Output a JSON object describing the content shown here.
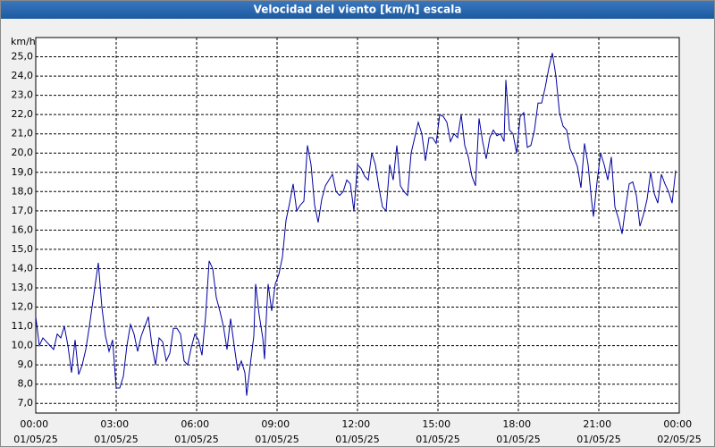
{
  "chart_data": {
    "type": "line",
    "title": "Velocidad del viento [km/h] escala",
    "y_label": "km/h",
    "x": [
      0,
      8,
      16,
      24,
      32,
      40,
      48,
      56,
      64,
      72,
      80,
      88,
      96,
      104,
      112,
      120,
      132,
      140,
      148,
      156,
      164,
      172,
      180,
      188,
      196,
      204,
      212,
      220,
      228,
      236,
      244,
      252,
      260,
      268,
      276,
      284,
      292,
      300,
      308,
      316,
      324,
      332,
      340,
      348,
      356,
      364,
      372,
      380,
      388,
      396,
      404,
      412,
      420,
      428,
      436,
      444,
      452,
      460,
      468,
      472,
      480,
      488,
      492,
      500,
      508,
      512,
      516,
      520,
      528,
      536,
      544,
      552,
      560,
      568,
      576,
      584,
      592,
      600,
      608,
      616,
      624,
      632,
      640,
      648,
      656,
      664,
      672,
      680,
      688,
      696,
      704,
      712,
      720,
      728,
      736,
      744,
      752,
      760,
      768,
      776,
      784,
      792,
      800,
      808,
      816,
      824,
      832,
      840,
      848,
      856,
      864,
      872,
      880,
      888,
      896,
      904,
      912,
      920,
      928,
      936,
      944,
      952,
      960,
      968,
      976,
      984,
      992,
      1000,
      1008,
      1016,
      1024,
      1032,
      1040,
      1048,
      1052,
      1060,
      1068,
      1076,
      1084,
      1092,
      1100,
      1108,
      1116,
      1124,
      1132,
      1140,
      1148,
      1156,
      1164,
      1172,
      1180,
      1188,
      1196,
      1204,
      1212,
      1220,
      1228,
      1236,
      1244,
      1248,
      1256,
      1264,
      1272,
      1280,
      1288,
      1296,
      1304,
      1312,
      1320,
      1328,
      1336,
      1344,
      1352,
      1360,
      1368,
      1376,
      1384,
      1392,
      1400,
      1408,
      1416,
      1424,
      1432
    ],
    "series": [
      {
        "name": "Velocidad del viento",
        "color": "#0000a0",
        "values": [
          11.5,
          10.0,
          10.4,
          10.2,
          10.0,
          9.8,
          10.6,
          10.4,
          11.0,
          10.0,
          8.6,
          10.3,
          8.5,
          9.0,
          9.8,
          11.0,
          13.0,
          14.3,
          12.0,
          10.5,
          9.7,
          10.3,
          7.8,
          7.8,
          8.4,
          10.0,
          11.1,
          10.6,
          9.7,
          10.5,
          11.0,
          11.5,
          10.0,
          9.0,
          10.4,
          10.2,
          9.2,
          9.6,
          10.9,
          10.9,
          10.6,
          9.2,
          9.0,
          9.9,
          10.6,
          10.3,
          9.5,
          11.5,
          14.4,
          14.0,
          12.5,
          11.8,
          11.0,
          9.8,
          11.4,
          10.0,
          8.7,
          9.2,
          8.6,
          7.4,
          9.0,
          10.5,
          13.2,
          11.6,
          10.4,
          9.3,
          11.5,
          13.2,
          11.8,
          13.2,
          13.7,
          14.6,
          16.5,
          17.4,
          18.4,
          17.0,
          17.3,
          17.5,
          20.4,
          19.4,
          17.3,
          16.4,
          17.6,
          18.3,
          18.6,
          18.9,
          18.0,
          17.8,
          18.0,
          18.6,
          18.4,
          17.0,
          19.4,
          19.2,
          18.8,
          18.6,
          20.0,
          19.4,
          18.2,
          17.2,
          17.0,
          19.4,
          18.6,
          20.4,
          18.3,
          18.0,
          17.8,
          20.0,
          20.8,
          21.6,
          21.0,
          19.6,
          20.8,
          20.8,
          20.5,
          22.0,
          21.9,
          21.6,
          20.6,
          21.0,
          20.8,
          22.0,
          20.4,
          19.8,
          18.8,
          18.3,
          21.8,
          20.6,
          19.7,
          20.8,
          21.2,
          20.9,
          21.0,
          20.6,
          23.8,
          21.2,
          21.0,
          20.0,
          21.9,
          22.1,
          20.3,
          20.4,
          21.2,
          22.6,
          22.6,
          23.4,
          24.4,
          25.2,
          24.0,
          22.1,
          21.4,
          21.2,
          20.2,
          19.8,
          19.3,
          18.2,
          20.5,
          19.4,
          17.5,
          16.7,
          18.5,
          20.0,
          19.4,
          18.6,
          19.8,
          17.2,
          16.6,
          15.8,
          17.2,
          18.4,
          18.5,
          17.8,
          16.2,
          16.8,
          17.6,
          19.0,
          17.9,
          17.4,
          18.9,
          18.4,
          18.0,
          17.4,
          19.1
        ]
      }
    ],
    "xlim": [
      0,
      1440
    ],
    "xticks": [
      {
        "value": 0,
        "label": "00:00 01/05/25"
      },
      {
        "value": 180,
        "label": "03:00 01/05/25"
      },
      {
        "value": 360,
        "label": "06:00 01/05/25"
      },
      {
        "value": 540,
        "label": "09:00 01/05/25"
      },
      {
        "value": 720,
        "label": "12:00 01/05/25"
      },
      {
        "value": 900,
        "label": "15:00 01/05/25"
      },
      {
        "value": 1080,
        "label": "18:00 01/05/25"
      },
      {
        "value": 1260,
        "label": "21:00 01/05/25"
      },
      {
        "value": 1440,
        "label": "00:00 02/05/25"
      }
    ],
    "ylim": [
      6.5,
      26.0
    ],
    "yticks": [
      {
        "value": 7,
        "label": "7,0"
      },
      {
        "value": 8,
        "label": "8,0"
      },
      {
        "value": 9,
        "label": "9,0"
      },
      {
        "value": 10,
        "label": "10,0"
      },
      {
        "value": 11,
        "label": "11,0"
      },
      {
        "value": 12,
        "label": "12,0"
      },
      {
        "value": 13,
        "label": "13,0"
      },
      {
        "value": 14,
        "label": "14,0"
      },
      {
        "value": 15,
        "label": "15,0"
      },
      {
        "value": 16,
        "label": "16,0"
      },
      {
        "value": 17,
        "label": "17,0"
      },
      {
        "value": 18,
        "label": "18,0"
      },
      {
        "value": 19,
        "label": "19,0"
      },
      {
        "value": 20,
        "label": "20,0"
      },
      {
        "value": 21,
        "label": "21,0"
      },
      {
        "value": 22,
        "label": "22,0"
      },
      {
        "value": 23,
        "label": "23,0"
      },
      {
        "value": 24,
        "label": "24,0"
      },
      {
        "value": 25,
        "label": "25,0"
      }
    ],
    "grid": true
  }
}
